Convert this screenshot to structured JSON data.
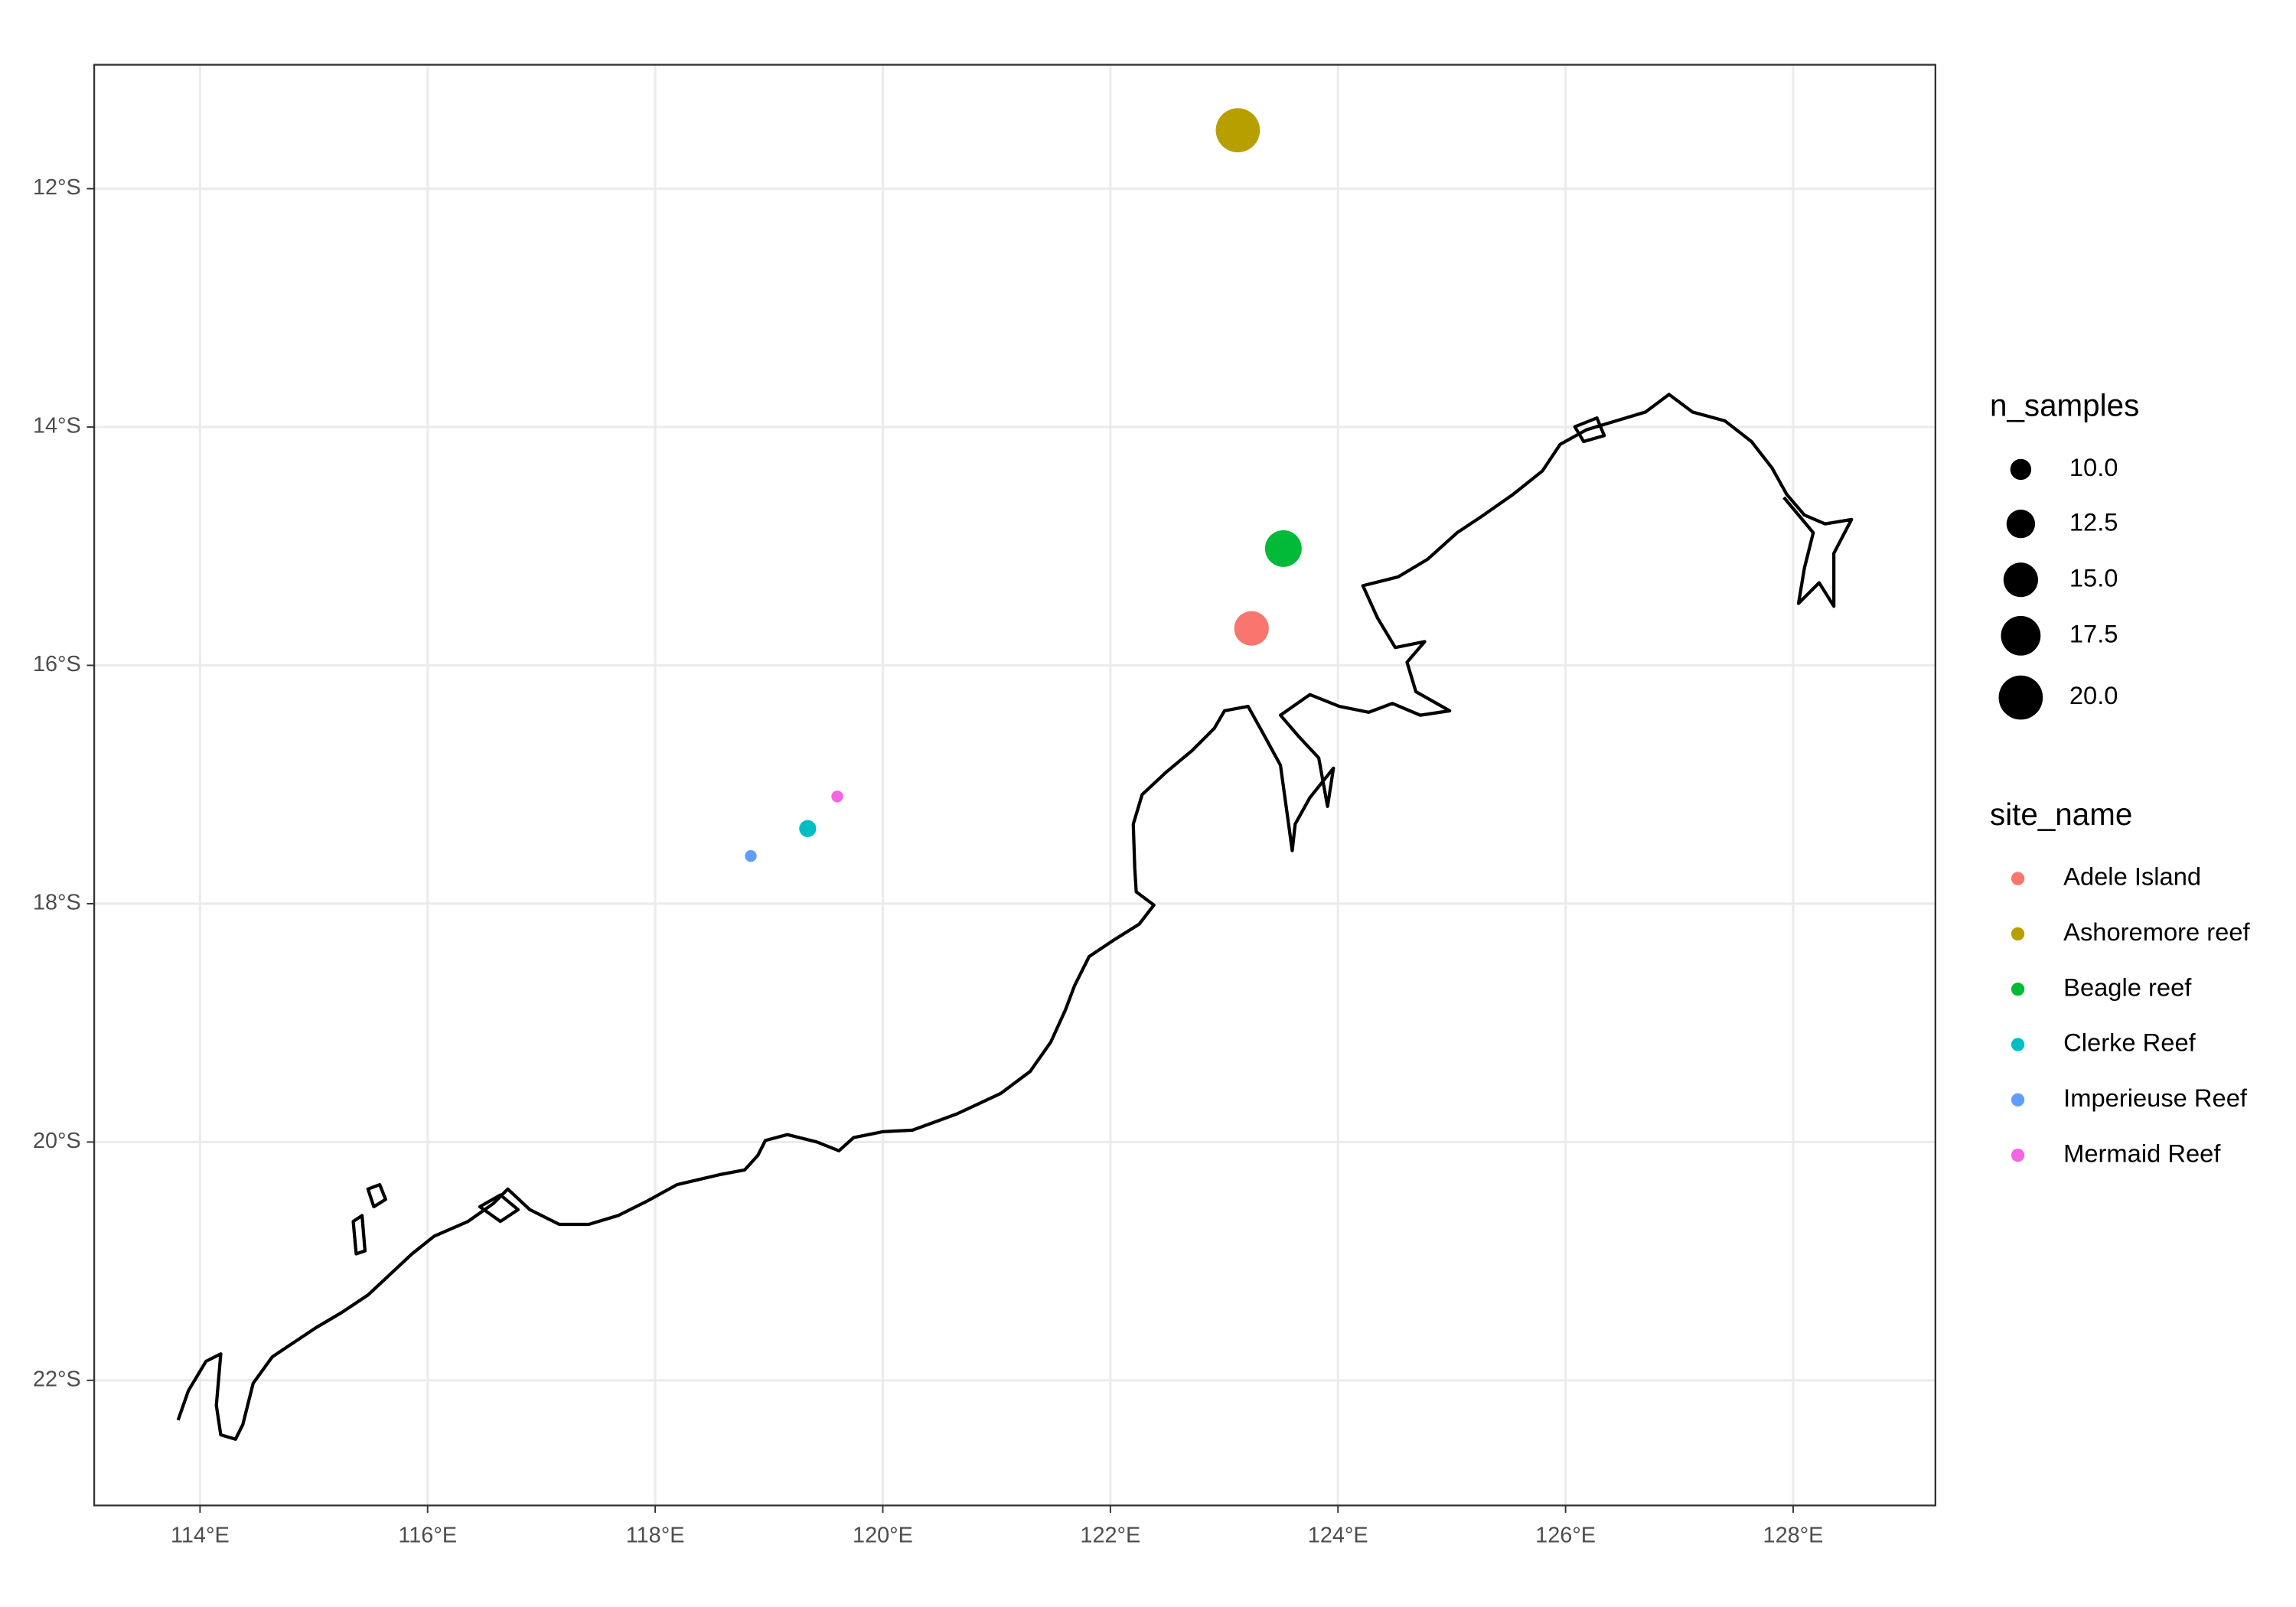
{
  "chart_data": {
    "type": "scatter",
    "xlim": [
      113.07,
      129.25
    ],
    "ylim": [
      -23.05,
      -10.96
    ],
    "xticks": [
      {
        "value": 114,
        "label": "114°E"
      },
      {
        "value": 116,
        "label": "116°E"
      },
      {
        "value": 118,
        "label": "118°E"
      },
      {
        "value": 120,
        "label": "120°E"
      },
      {
        "value": 122,
        "label": "122°E"
      },
      {
        "value": 124,
        "label": "124°E"
      },
      {
        "value": 126,
        "label": "126°E"
      },
      {
        "value": 128,
        "label": "128°E"
      }
    ],
    "yticks": [
      {
        "value": -12,
        "label": "12°S"
      },
      {
        "value": -14,
        "label": "14°S"
      },
      {
        "value": -16,
        "label": "16°S"
      },
      {
        "value": -18,
        "label": "18°S"
      },
      {
        "value": -20,
        "label": "20°S"
      },
      {
        "value": -22,
        "label": "22°S"
      }
    ],
    "grid": true,
    "size_legend": {
      "title": "n_samples",
      "breaks": [
        {
          "value": 10,
          "label": "10.0"
        },
        12.5,
        {
          "value": 15,
          "label": "15.0"
        },
        17.5,
        {
          "value": 20,
          "label": "20.0"
        }
      ]
    },
    "color_legend_title": "site_name",
    "series": [
      {
        "name": "Adele Island",
        "color": "#F8766D",
        "x": [
          123.24
        ],
        "y": [
          -15.69
        ],
        "size": [
          15
        ]
      },
      {
        "name": "Ashoremore reef",
        "color": "#B79F00",
        "x": [
          123.12
        ],
        "y": [
          -11.51
        ],
        "size": [
          20
        ]
      },
      {
        "name": "Beagle reef",
        "color": "#00BA38",
        "x": [
          123.52
        ],
        "y": [
          -15.02
        ],
        "size": [
          16
        ]
      },
      {
        "name": "Clerke Reef",
        "color": "#00BFC4",
        "x": [
          119.34
        ],
        "y": [
          -17.37
        ],
        "size": [
          9
        ]
      },
      {
        "name": "Imperieuse Reef",
        "color": "#619CFF",
        "x": [
          118.84
        ],
        "y": [
          -17.6
        ],
        "size": [
          8
        ]
      },
      {
        "name": "Mermaid Reef",
        "color": "#F564E3",
        "x": [
          119.6
        ],
        "y": [
          -17.1
        ],
        "size": [
          8
        ]
      }
    ]
  }
}
